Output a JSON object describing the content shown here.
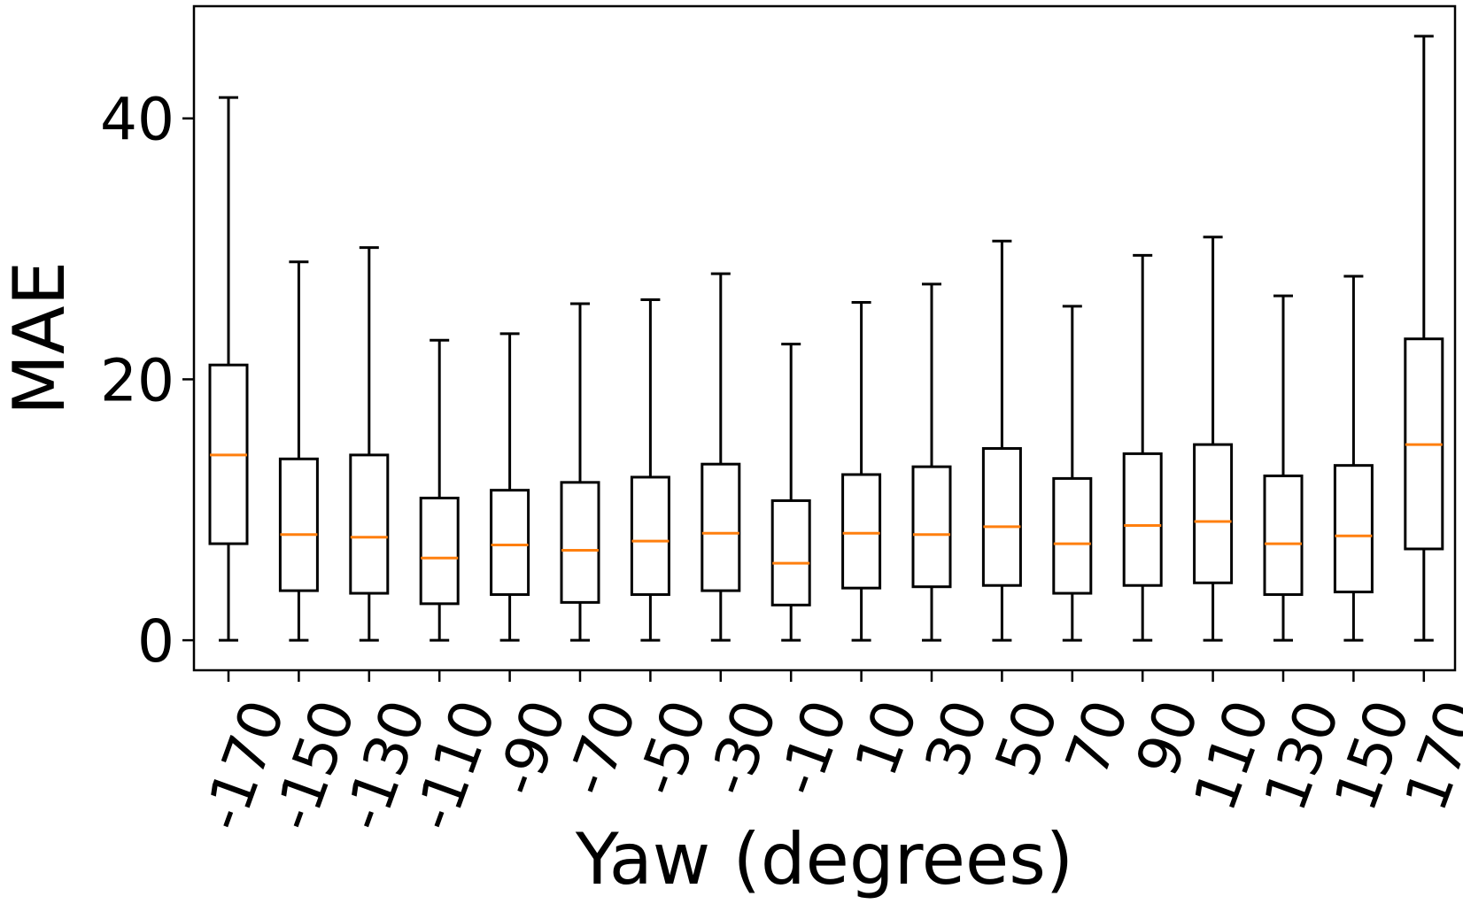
{
  "chart_data": {
    "type": "boxplot",
    "xlabel": "Yaw (degrees)",
    "ylabel": "MAE",
    "ylim": [
      -2.3,
      48.6
    ],
    "yticks": [
      0,
      20,
      40
    ],
    "grid": false,
    "categories": [
      "-170",
      "-150",
      "-130",
      "-110",
      "-90",
      "-70",
      "-50",
      "-30",
      "-10",
      "10",
      "30",
      "50",
      "70",
      "90",
      "110",
      "130",
      "150",
      "170"
    ],
    "boxes": [
      {
        "label": "-170",
        "whisker_low": 0,
        "q1": 7.4,
        "median": 14.2,
        "q3": 21.1,
        "whisker_high": 41.6
      },
      {
        "label": "-150",
        "whisker_low": 0,
        "q1": 3.8,
        "median": 8.1,
        "q3": 13.9,
        "whisker_high": 29.0
      },
      {
        "label": "-130",
        "whisker_low": 0,
        "q1": 3.6,
        "median": 7.9,
        "q3": 14.2,
        "whisker_high": 30.1
      },
      {
        "label": "-110",
        "whisker_low": 0,
        "q1": 2.8,
        "median": 6.3,
        "q3": 10.9,
        "whisker_high": 23.0
      },
      {
        "label": "-90",
        "whisker_low": 0,
        "q1": 3.5,
        "median": 7.3,
        "q3": 11.5,
        "whisker_high": 23.5
      },
      {
        "label": "-70",
        "whisker_low": 0,
        "q1": 2.9,
        "median": 6.9,
        "q3": 12.1,
        "whisker_high": 25.8
      },
      {
        "label": "-50",
        "whisker_low": 0,
        "q1": 3.5,
        "median": 7.6,
        "q3": 12.5,
        "whisker_high": 26.1
      },
      {
        "label": "-30",
        "whisker_low": 0,
        "q1": 3.8,
        "median": 8.2,
        "q3": 13.5,
        "whisker_high": 28.1
      },
      {
        "label": "-10",
        "whisker_low": 0,
        "q1": 2.7,
        "median": 5.9,
        "q3": 10.7,
        "whisker_high": 22.7
      },
      {
        "label": "10",
        "whisker_low": 0,
        "q1": 4.0,
        "median": 8.2,
        "q3": 12.7,
        "whisker_high": 25.9
      },
      {
        "label": "30",
        "whisker_low": 0,
        "q1": 4.1,
        "median": 8.1,
        "q3": 13.3,
        "whisker_high": 27.3
      },
      {
        "label": "50",
        "whisker_low": 0,
        "q1": 4.2,
        "median": 8.7,
        "q3": 14.7,
        "whisker_high": 30.6
      },
      {
        "label": "70",
        "whisker_low": 0,
        "q1": 3.6,
        "median": 7.4,
        "q3": 12.4,
        "whisker_high": 25.6
      },
      {
        "label": "90",
        "whisker_low": 0,
        "q1": 4.2,
        "median": 8.8,
        "q3": 14.3,
        "whisker_high": 29.5
      },
      {
        "label": "110",
        "whisker_low": 0,
        "q1": 4.4,
        "median": 9.1,
        "q3": 15.0,
        "whisker_high": 30.9
      },
      {
        "label": "130",
        "whisker_low": 0,
        "q1": 3.5,
        "median": 7.4,
        "q3": 12.6,
        "whisker_high": 26.4
      },
      {
        "label": "150",
        "whisker_low": 0,
        "q1": 3.7,
        "median": 8.0,
        "q3": 13.4,
        "whisker_high": 27.9
      },
      {
        "label": "170",
        "whisker_low": 0,
        "q1": 7.0,
        "median": 15.0,
        "q3": 23.1,
        "whisker_high": 46.3
      }
    ],
    "colors": {
      "box": "#000000",
      "median": "#ff7f0e",
      "axis": "#000000"
    }
  }
}
